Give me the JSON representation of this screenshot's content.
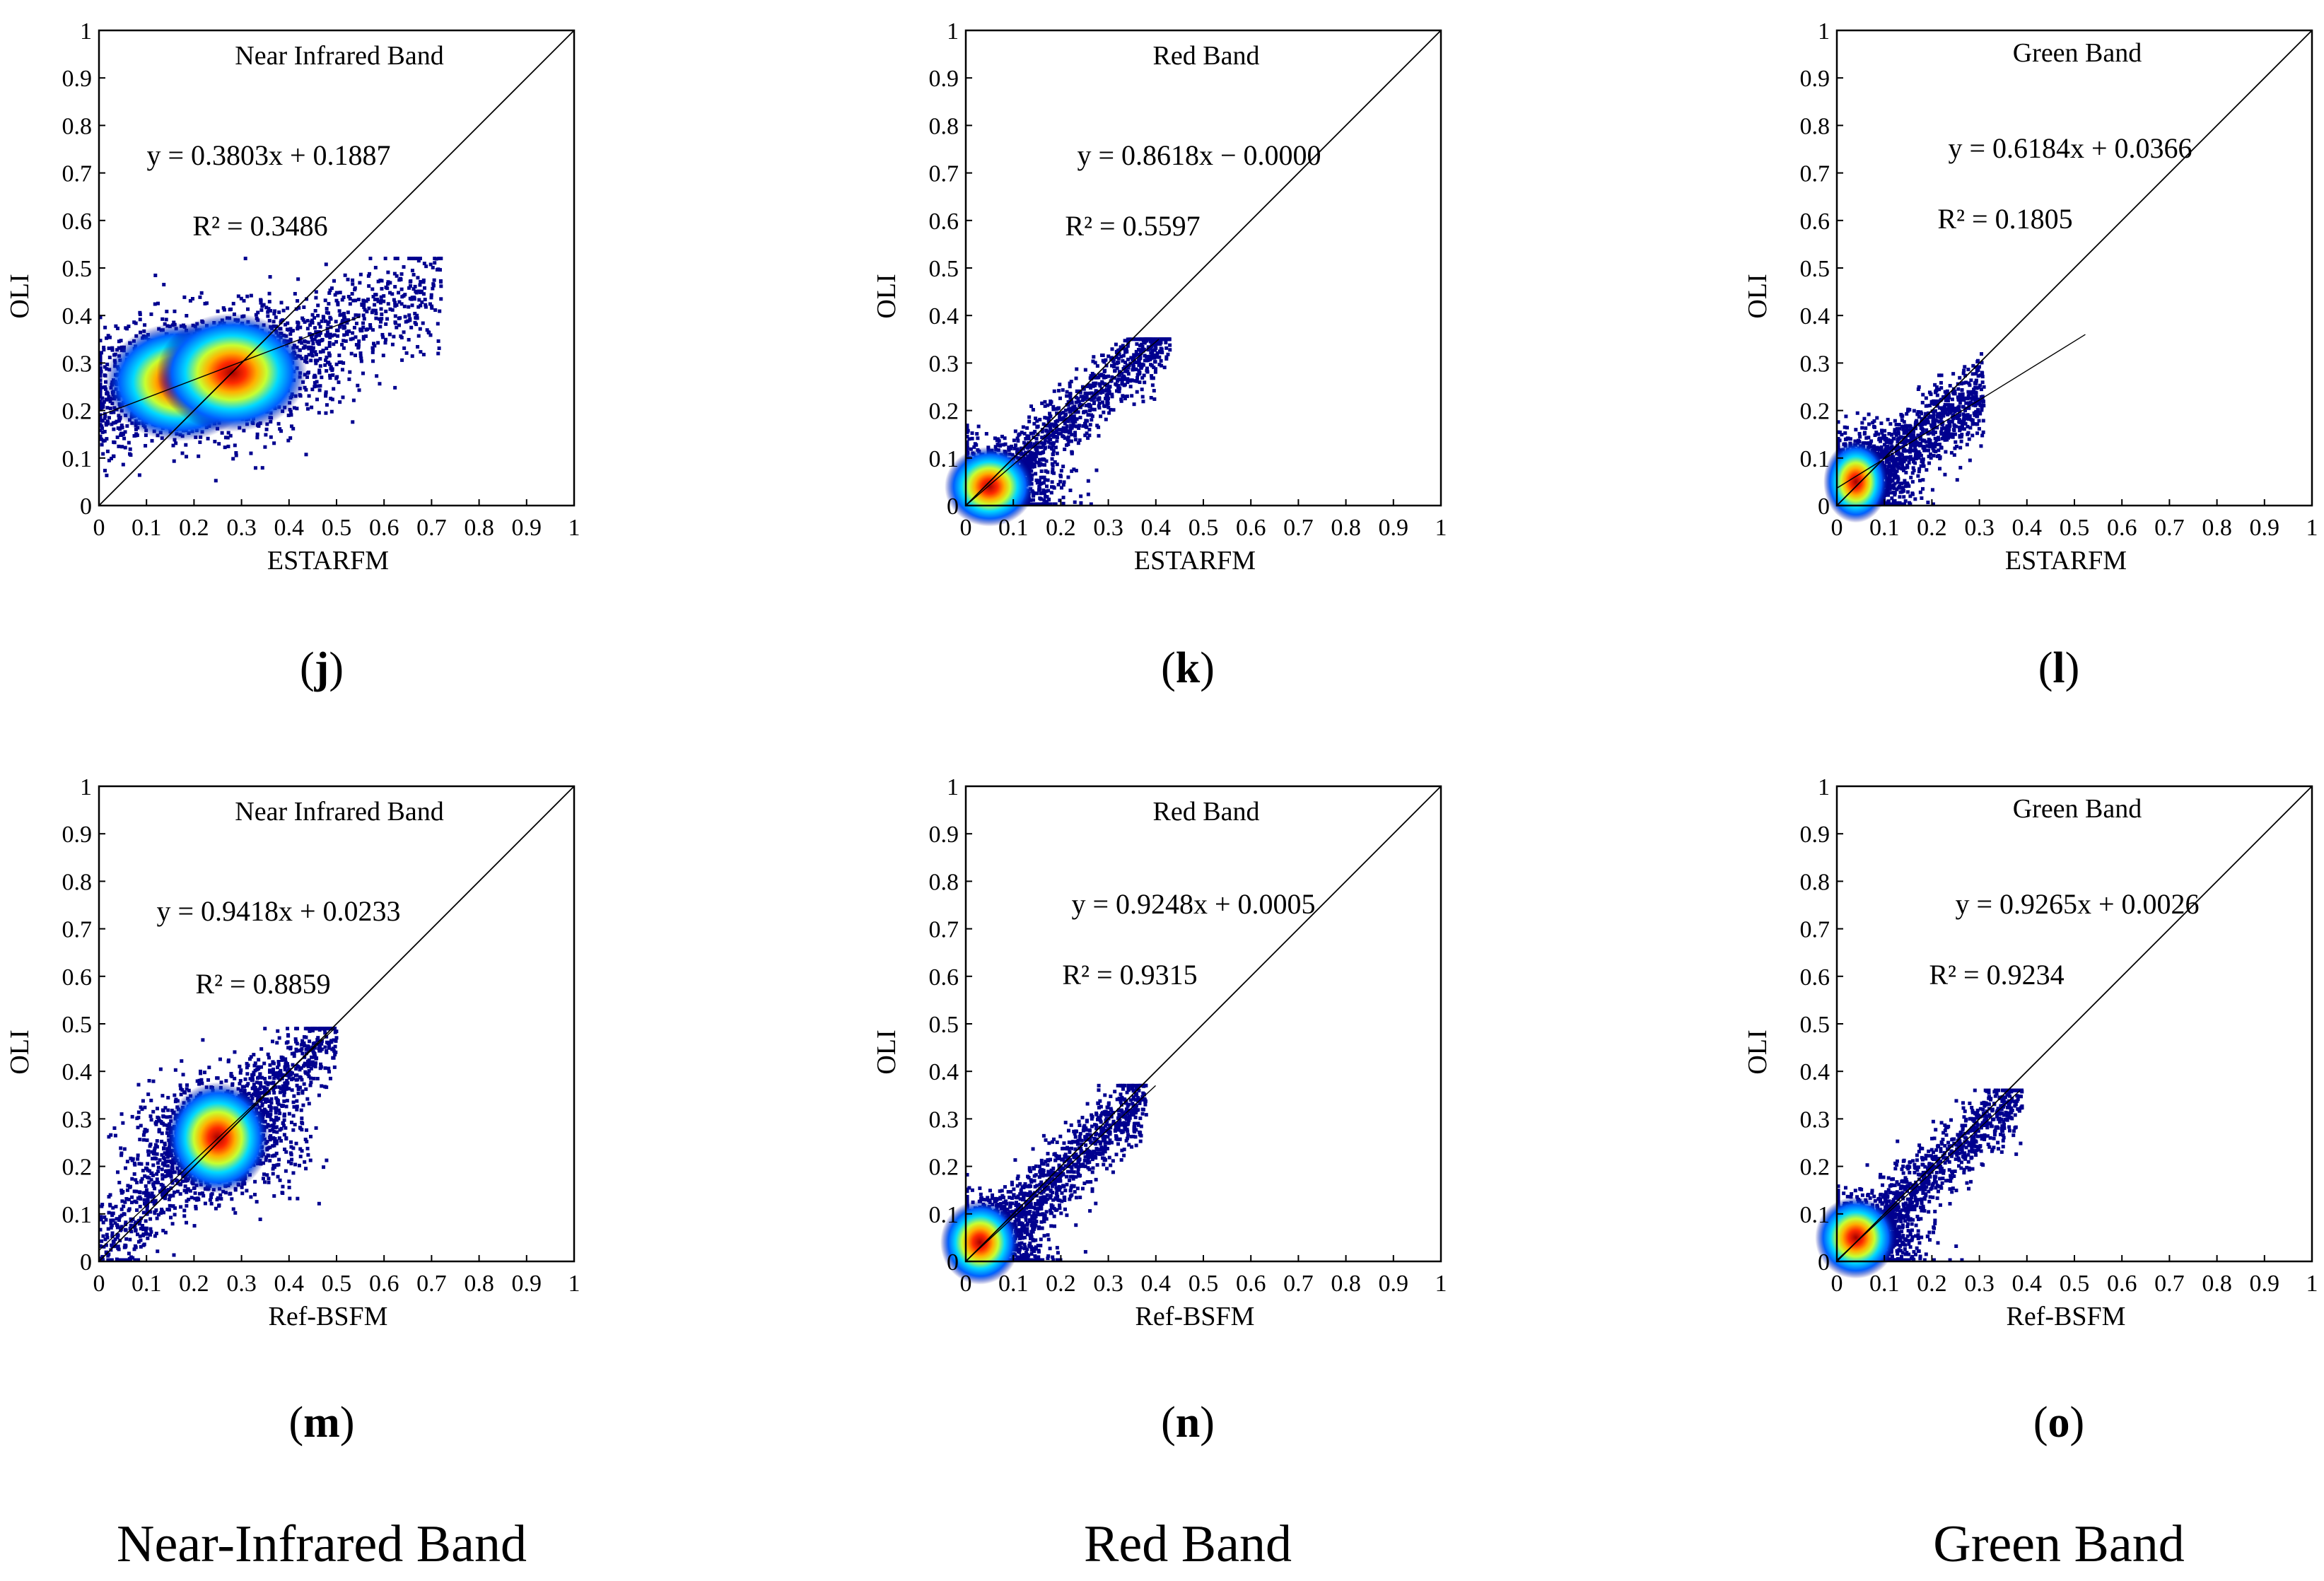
{
  "chart_data": [
    {
      "type": "scatter",
      "panel": "j",
      "title": "Near Infrared Band",
      "xlabel": "ESTARFM",
      "ylabel": "OLI",
      "xlim": [
        0,
        1
      ],
      "ylim": [
        0,
        1
      ],
      "ticks": [
        "0",
        "0.1",
        "0.2",
        "0.3",
        "0.4",
        "0.5",
        "0.6",
        "0.7",
        "0.8",
        "0.9",
        "1"
      ],
      "equation": "y = 0.3803x + 0.1887",
      "r2": "R² = 0.3486",
      "slope": 0.3803,
      "intercept": 0.1887,
      "density_peaks": [
        [
          0.17,
          0.26
        ],
        [
          0.28,
          0.28
        ]
      ],
      "cloud": {
        "x_range": [
          0.0,
          0.72
        ],
        "y_range": [
          0.0,
          0.52
        ]
      }
    },
    {
      "type": "scatter",
      "panel": "k",
      "title": "Red Band",
      "xlabel": "ESTARFM",
      "ylabel": "OLI",
      "xlim": [
        0,
        1
      ],
      "ylim": [
        0,
        1
      ],
      "ticks": [
        "0",
        "0.1",
        "0.2",
        "0.3",
        "0.4",
        "0.5",
        "0.6",
        "0.7",
        "0.8",
        "0.9",
        "1"
      ],
      "equation": "y = 0.8618x − 0.0000",
      "r2": "R² = 0.5597",
      "slope": 0.8618,
      "intercept": 0.0,
      "density_peaks": [
        [
          0.05,
          0.04
        ]
      ],
      "cloud": {
        "x_range": [
          0.0,
          0.43
        ],
        "y_range": [
          0.0,
          0.35
        ]
      }
    },
    {
      "type": "scatter",
      "panel": "l",
      "title": "Green Band",
      "xlabel": "ESTARFM",
      "ylabel": "OLI",
      "xlim": [
        0,
        1
      ],
      "ylim": [
        0,
        1
      ],
      "ticks": [
        "0",
        "0.1",
        "0.2",
        "0.3",
        "0.4",
        "0.5",
        "0.6",
        "0.7",
        "0.8",
        "0.9",
        "1"
      ],
      "equation": "y = 0.6184x + 0.0366",
      "r2": "R² = 0.1805",
      "slope": 0.6184,
      "intercept": 0.0366,
      "density_peaks": [
        [
          0.04,
          0.05
        ]
      ],
      "cloud": {
        "x_range": [
          0.0,
          0.31
        ],
        "y_range": [
          0.0,
          0.36
        ]
      }
    },
    {
      "type": "scatter",
      "panel": "m",
      "title": "Near Infrared Band",
      "xlabel": "Ref-BSFM",
      "ylabel": "OLI",
      "xlim": [
        0,
        1
      ],
      "ylim": [
        0,
        1
      ],
      "ticks": [
        "0",
        "0.1",
        "0.2",
        "0.3",
        "0.4",
        "0.5",
        "0.6",
        "0.7",
        "0.8",
        "0.9",
        "1"
      ],
      "equation": "y = 0.9418x + 0.0233",
      "r2": "R² = 0.8859",
      "slope": 0.9418,
      "intercept": 0.0233,
      "density_peaks": [
        [
          0.25,
          0.26
        ]
      ],
      "cloud": {
        "x_range": [
          0.0,
          0.5
        ],
        "y_range": [
          0.0,
          0.49
        ]
      }
    },
    {
      "type": "scatter",
      "panel": "n",
      "title": "Red Band",
      "xlabel": "Ref-BSFM",
      "ylabel": "OLI",
      "xlim": [
        0,
        1
      ],
      "ylim": [
        0,
        1
      ],
      "ticks": [
        "0",
        "0.1",
        "0.2",
        "0.3",
        "0.4",
        "0.5",
        "0.6",
        "0.7",
        "0.8",
        "0.9",
        "1"
      ],
      "equation": "y = 0.9248x + 0.0005",
      "r2": "R² = 0.9315",
      "slope": 0.9248,
      "intercept": 0.0005,
      "density_peaks": [
        [
          0.03,
          0.04
        ]
      ],
      "cloud": {
        "x_range": [
          0.0,
          0.38
        ],
        "y_range": [
          0.0,
          0.37
        ]
      }
    },
    {
      "type": "scatter",
      "panel": "o",
      "title": "Green Band",
      "xlabel": "Ref-BSFM",
      "ylabel": "OLI",
      "xlim": [
        0,
        1
      ],
      "ylim": [
        0,
        1
      ],
      "ticks": [
        "0",
        "0.1",
        "0.2",
        "0.3",
        "0.4",
        "0.5",
        "0.6",
        "0.7",
        "0.8",
        "0.9",
        "1"
      ],
      "equation": "y = 0.9265x + 0.0026",
      "r2": "R² = 0.9234",
      "slope": 0.9265,
      "intercept": 0.0026,
      "density_peaks": [
        [
          0.04,
          0.05
        ]
      ],
      "cloud": {
        "x_range": [
          0.0,
          0.39
        ],
        "y_range": [
          0.0,
          0.36
        ]
      }
    }
  ],
  "column_captions": [
    "Near-Infrared Band",
    "Red Band",
    "Green Band"
  ],
  "colors": {
    "density_low": "#00008f",
    "density_mid": "#00c8ff",
    "density_high_1": "#ffff00",
    "density_high_2": "#ff6600",
    "density_peak": "#a50000",
    "line": "#000000"
  }
}
